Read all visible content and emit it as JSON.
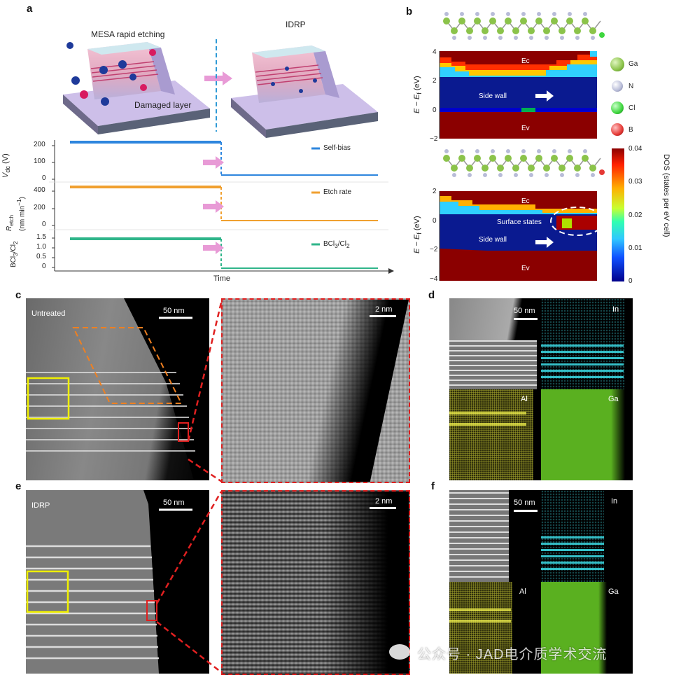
{
  "panel_labels": {
    "a": "a",
    "b": "b",
    "c": "c",
    "d": "d",
    "e": "e",
    "f": "f"
  },
  "panel_a": {
    "mesa_title": "MESA rapid etching",
    "idrp_title": "IDRP",
    "damaged_layer": "Damaged layer",
    "vdc_axis": {
      "label_main": "V",
      "label_sub": "dc",
      "label_unit": " (V)",
      "ticks": [
        "200",
        "100",
        "0"
      ]
    },
    "retch_axis": {
      "label_main": "R",
      "label_sub": "etch",
      "label_unit": "(nm min",
      "label_sup": "−1",
      "ticks": [
        "400",
        "200",
        "0"
      ]
    },
    "ratio_axis": {
      "label": "BCl",
      "label2": "/Cl",
      "label_sub1": "3",
      "label_sub2": "2",
      "ticks": [
        "1.5",
        "1.0",
        "0.5",
        "0"
      ]
    },
    "legend": {
      "selfbias": "Self-bias",
      "etchrate": "Etch rate",
      "ratio": "BCl",
      "ratio2": "/Cl",
      "ratio_sub1": "3",
      "ratio_sub2": "2"
    },
    "time_label": "Time",
    "colors": {
      "selfbias": "#2e86de",
      "etchrate": "#f0a030",
      "ratio": "#2fb58a",
      "arrow": "#e89ad6"
    }
  },
  "panel_b": {
    "top": {
      "ylabel": "E − E",
      "ylabel_sub": "f",
      "ylabel_unit": " (eV)",
      "ticks": [
        "4",
        "2",
        "0",
        "−2"
      ],
      "ec": "Ec",
      "ev": "Ev",
      "side_wall": "Side wall"
    },
    "bottom": {
      "ylabel": "E − E",
      "ylabel_sub": "f",
      "ylabel_unit": " (eV)",
      "ticks": [
        "2",
        "0",
        "−2",
        "−4"
      ],
      "ec": "Ec",
      "ev": "Ev",
      "side_wall": "Side wall",
      "surface_states": "Surface states"
    },
    "atoms": [
      {
        "name": "Ga",
        "color": "#8bc34a"
      },
      {
        "name": "N",
        "color": "#b8bcd8"
      },
      {
        "name": "Cl",
        "color": "#3ed63e"
      },
      {
        "name": "B",
        "color": "#e53935"
      }
    ],
    "colorbar": {
      "ticks": [
        "0.04",
        "0.03",
        "0.02",
        "0.01",
        "0"
      ],
      "label": "DOS (states per eV cell)"
    }
  },
  "panel_c": {
    "label": "Untreated",
    "scale_left": "50 nm",
    "scale_right": "2 nm"
  },
  "panel_d": {
    "scale": "50 nm",
    "in": "In",
    "al": "Al",
    "ga": "Ga"
  },
  "panel_e": {
    "label": "IDRP",
    "scale_left": "50 nm",
    "scale_right": "2 nm"
  },
  "panel_f": {
    "scale": "50 nm",
    "in": "In",
    "al": "Al",
    "ga": "Ga"
  },
  "watermark": "公众号 · JAD电介质学术交流"
}
